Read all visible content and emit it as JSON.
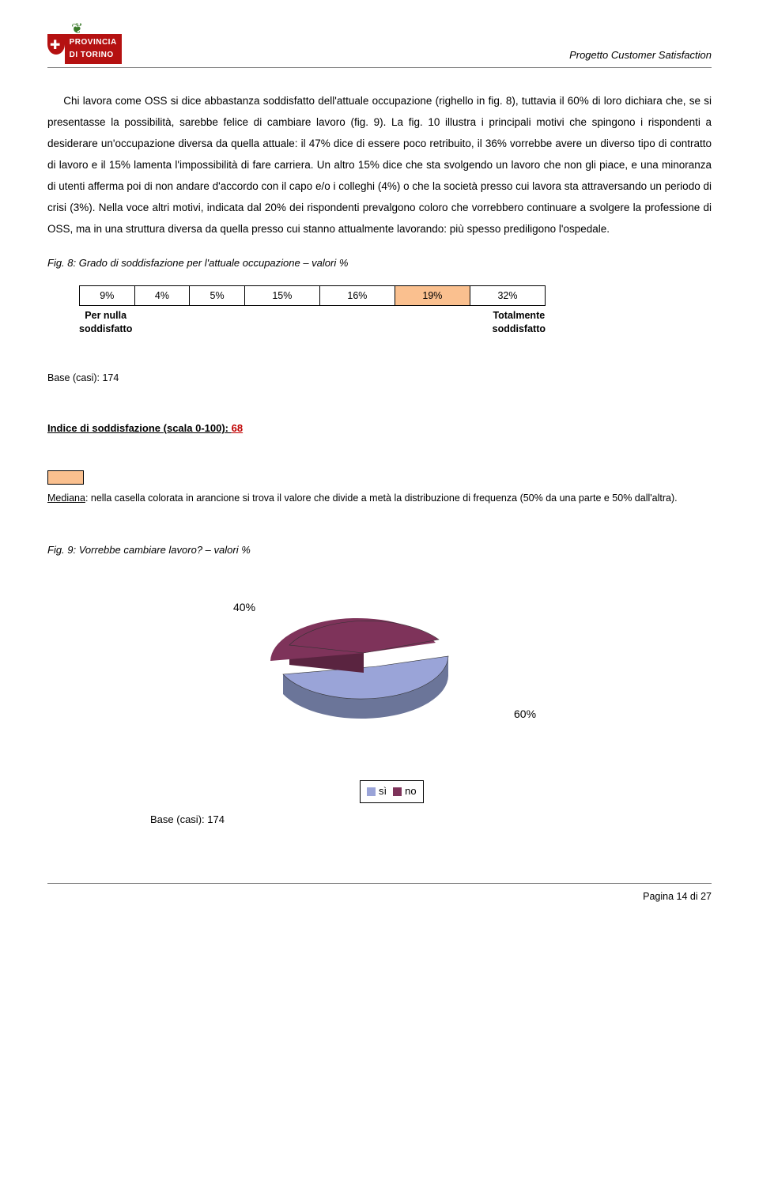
{
  "header": {
    "logo_top": "PROVINCIA",
    "logo_bottom": "DI TORINO",
    "title": "Progetto Customer Satisfaction"
  },
  "body": {
    "p1": "Chi lavora come OSS si dice abbastanza soddisfatto dell'attuale occupazione (righello in fig. 8), tuttavia il 60% di loro dichiara che, se si presentasse la possibilità, sarebbe felice di cambiare lavoro (fig. 9). La fig. 10 illustra i principali motivi che spingono i rispondenti a desiderare un'occupazione diversa da quella attuale: il 47% dice di essere poco retribuito, il 36% vorrebbe avere un diverso tipo di contratto di lavoro e il 15% lamenta l'impossibilità di fare carriera. Un altro 15% dice che sta svolgendo un lavoro che non gli piace, e una minoranza di utenti afferma poi di non andare d'accordo con il capo e/o i colleghi (4%) o che la società presso cui lavora sta attraversando un periodo di crisi (3%). Nella voce altri motivi, indicata dal 20% dei rispondenti prevalgono coloro che vorrebbero continuare a svolgere la professione di OSS, ma in una struttura diversa da quella presso cui stanno attualmente lavorando: più spesso prediligono l'ospedale."
  },
  "fig8": {
    "caption": "Fig. 8: Grado di soddisfazione per l'attuale occupazione – valori %",
    "cells": [
      "9%",
      "4%",
      "5%",
      "15%",
      "16%",
      "19%",
      "32%"
    ],
    "median_index": 5,
    "label_left_l1": "Per nulla",
    "label_left_l2": "soddisfatto",
    "label_right_l1": "Totalmente",
    "label_right_l2": "soddisfatto",
    "cell_bg": "#ffffff",
    "median_bg": "#fac08f",
    "border_color": "#000000"
  },
  "base": {
    "text": "Base (casi): 174"
  },
  "index": {
    "label": "Indice di soddisfazione (scala 0-100): ",
    "value": "68",
    "value_color": "#c00000"
  },
  "median_note": {
    "lead": "Mediana",
    "text": ": nella casella colorata in arancione si trova il valore che divide a metà la distribuzione di frequenza (50% da una parte e 50% dall'altra).",
    "swatch_color": "#fac08f"
  },
  "fig9": {
    "caption": "Fig. 9: Vorrebbe cambiare lavoro? – valori %",
    "type": "pie3d",
    "slices": [
      {
        "label": "sì",
        "value": 60,
        "label_text": "60%",
        "color_top": "#9aa4d8",
        "color_side": "#6b7599"
      },
      {
        "label": "no",
        "value": 40,
        "label_text": "40%",
        "color_top": "#7e335a",
        "color_side": "#5a2440"
      }
    ],
    "legend_si": "sì",
    "legend_no": "no",
    "base": "Base (casi): 174"
  },
  "footer": {
    "text": "Pagina 14 di 27"
  }
}
